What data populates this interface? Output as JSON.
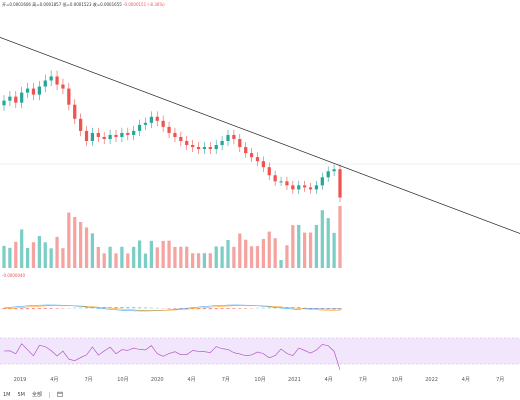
{
  "ohlc": {
    "open": "开=0.0001606",
    "high": "高=0.0001857",
    "low": "低=0.0001523",
    "close": "收=0.0001655",
    "change": "-0.0000151 (-8.36%)"
  },
  "macd_value": "-0.0000040",
  "toolbar": {
    "range_1m": "1M",
    "range_5m": "5M",
    "range_all": "全部",
    "calendar_icon": "calendar-icon"
  },
  "colors": {
    "up": "#26a69a",
    "down": "#ef5350",
    "up_volume": "#7ccdc5",
    "down_volume": "#f5a3a0",
    "trendline": "#222222",
    "rsi_band": "#f1e6fb",
    "rsi_line": "#ab47bc",
    "macd_line": "#2196f3",
    "signal_line": "#ff9800"
  },
  "chart_data": {
    "type": "candlestick",
    "x_ticks": [
      "2019",
      "4月",
      "7月",
      "10月",
      "2020",
      "4月",
      "7月",
      "10月",
      "2021",
      "4月",
      "7月",
      "10月",
      "2022",
      "4月",
      "7月"
    ],
    "price_series": [
      0.00023,
      0.000232,
      0.000229,
      0.000234,
      0.000236,
      0.000233,
      0.000237,
      0.00024,
      0.000242,
      0.000238,
      0.000236,
      0.000228,
      0.000221,
      0.000215,
      0.00021,
      0.000214,
      0.000212,
      0.000211,
      0.000213,
      0.000212,
      0.000214,
      0.000213,
      0.000215,
      0.000218,
      0.000219,
      0.000222,
      0.00022,
      0.000217,
      0.000214,
      0.000212,
      0.00021,
      0.000208,
      0.000207,
      0.000206,
      0.000207,
      0.000206,
      0.000208,
      0.00021,
      0.000213,
      0.000211,
      0.000207,
      0.000204,
      0.000202,
      0.0002,
      0.000197,
      0.000193,
      0.00019,
      0.00019,
      0.000188,
      0.000186,
      0.000188,
      0.000187,
      0.000186,
      0.000188,
      0.000192,
      0.000195,
      0.000196,
      0.000182
    ],
    "trendline": {
      "from": [
        "2018-11",
        0.000262
      ],
      "to": [
        "2022-10",
        0.00016
      ]
    },
    "current_price": 0.0001655
  }
}
